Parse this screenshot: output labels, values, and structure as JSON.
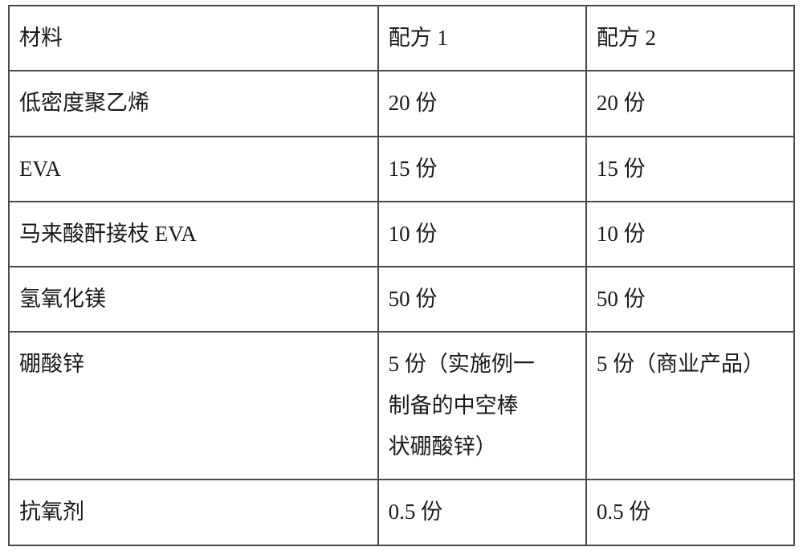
{
  "table": {
    "background_color": "#ffffff",
    "border_color": "#4a4a4a",
    "text_color": "#1a1a1a",
    "font_size": 27,
    "columns": [
      {
        "key": "material",
        "header": "材料",
        "width_pct": 47
      },
      {
        "key": "formula1",
        "header": "配方 1",
        "width_pct": 26.5
      },
      {
        "key": "formula2",
        "header": "配方 2",
        "width_pct": 26.5
      }
    ],
    "rows": [
      {
        "material": "材料",
        "formula1": "配方 1",
        "formula2": "配方 2"
      },
      {
        "material": "低密度聚乙烯",
        "formula1": "20 份",
        "formula2": "20 份"
      },
      {
        "material": "EVA",
        "formula1": "15 份",
        "formula2": "15 份"
      },
      {
        "material": "马来酸酐接枝 EVA",
        "formula1": "10 份",
        "formula2": "10 份"
      },
      {
        "material": "氢氧化镁",
        "formula1": "50 份",
        "formula2": "50 份"
      },
      {
        "material": "硼酸锌",
        "formula1": "5 份（实施例一\n制备的中空棒\n状硼酸锌）",
        "formula2": "5 份（商业产品）"
      },
      {
        "material": "抗氧剂",
        "formula1": "0.5 份",
        "formula2": "0.5 份"
      }
    ]
  }
}
